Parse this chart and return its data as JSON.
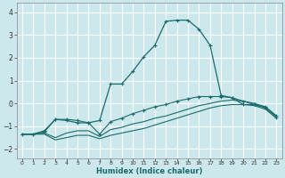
{
  "title": "",
  "xlabel": "Humidex (Indice chaleur)",
  "background_color": "#cce8ec",
  "grid_color": "#ffffff",
  "line_color": "#1a6b6b",
  "xlim": [
    -0.5,
    23.5
  ],
  "ylim": [
    -2.4,
    4.4
  ],
  "xticks": [
    0,
    1,
    2,
    3,
    4,
    5,
    6,
    7,
    8,
    9,
    10,
    11,
    12,
    13,
    14,
    15,
    16,
    17,
    18,
    19,
    20,
    21,
    22,
    23
  ],
  "yticks": [
    -2,
    -1,
    0,
    1,
    2,
    3,
    4
  ],
  "line1_x": [
    0,
    1,
    2,
    3,
    4,
    5,
    6,
    7,
    8,
    9,
    10,
    11,
    12,
    13,
    14,
    15,
    16,
    17,
    18,
    19,
    20,
    21,
    22,
    23
  ],
  "line1_y": [
    -1.35,
    -1.35,
    -1.2,
    -0.7,
    -0.75,
    -0.85,
    -0.85,
    -0.75,
    0.85,
    0.85,
    1.4,
    2.05,
    2.55,
    3.6,
    3.65,
    3.65,
    3.25,
    2.55,
    0.35,
    0.25,
    -0.05,
    -0.05,
    -0.15,
    -0.55
  ],
  "line2_x": [
    0,
    1,
    2,
    3,
    4,
    5,
    6,
    7,
    8,
    9,
    10,
    11,
    12,
    13,
    14,
    15,
    16,
    17,
    18,
    19,
    20,
    21,
    22,
    23
  ],
  "line2_y": [
    -1.35,
    -1.35,
    -1.25,
    -0.7,
    -0.7,
    -0.75,
    -0.85,
    -1.35,
    -0.8,
    -0.65,
    -0.45,
    -0.3,
    -0.15,
    -0.05,
    0.1,
    0.2,
    0.3,
    0.3,
    0.3,
    0.25,
    0.1,
    -0.05,
    -0.2,
    -0.6
  ],
  "line3_x": [
    0,
    1,
    2,
    3,
    4,
    5,
    6,
    7,
    8,
    9,
    10,
    11,
    12,
    13,
    14,
    15,
    16,
    17,
    18,
    19,
    20,
    21,
    22,
    23
  ],
  "line3_y": [
    -1.35,
    -1.35,
    -1.3,
    -1.5,
    -1.3,
    -1.2,
    -1.2,
    -1.45,
    -1.15,
    -1.05,
    -0.9,
    -0.8,
    -0.65,
    -0.55,
    -0.4,
    -0.25,
    -0.1,
    0.0,
    0.1,
    0.15,
    0.1,
    0.0,
    -0.15,
    -0.55
  ],
  "line4_x": [
    0,
    1,
    2,
    3,
    4,
    5,
    6,
    7,
    8,
    9,
    10,
    11,
    12,
    13,
    14,
    15,
    16,
    17,
    18,
    19,
    20,
    21,
    22,
    23
  ],
  "line4_y": [
    -1.35,
    -1.35,
    -1.35,
    -1.6,
    -1.5,
    -1.4,
    -1.4,
    -1.55,
    -1.4,
    -1.3,
    -1.2,
    -1.1,
    -0.95,
    -0.8,
    -0.65,
    -0.5,
    -0.35,
    -0.2,
    -0.1,
    -0.05,
    -0.05,
    -0.1,
    -0.25,
    -0.65
  ]
}
